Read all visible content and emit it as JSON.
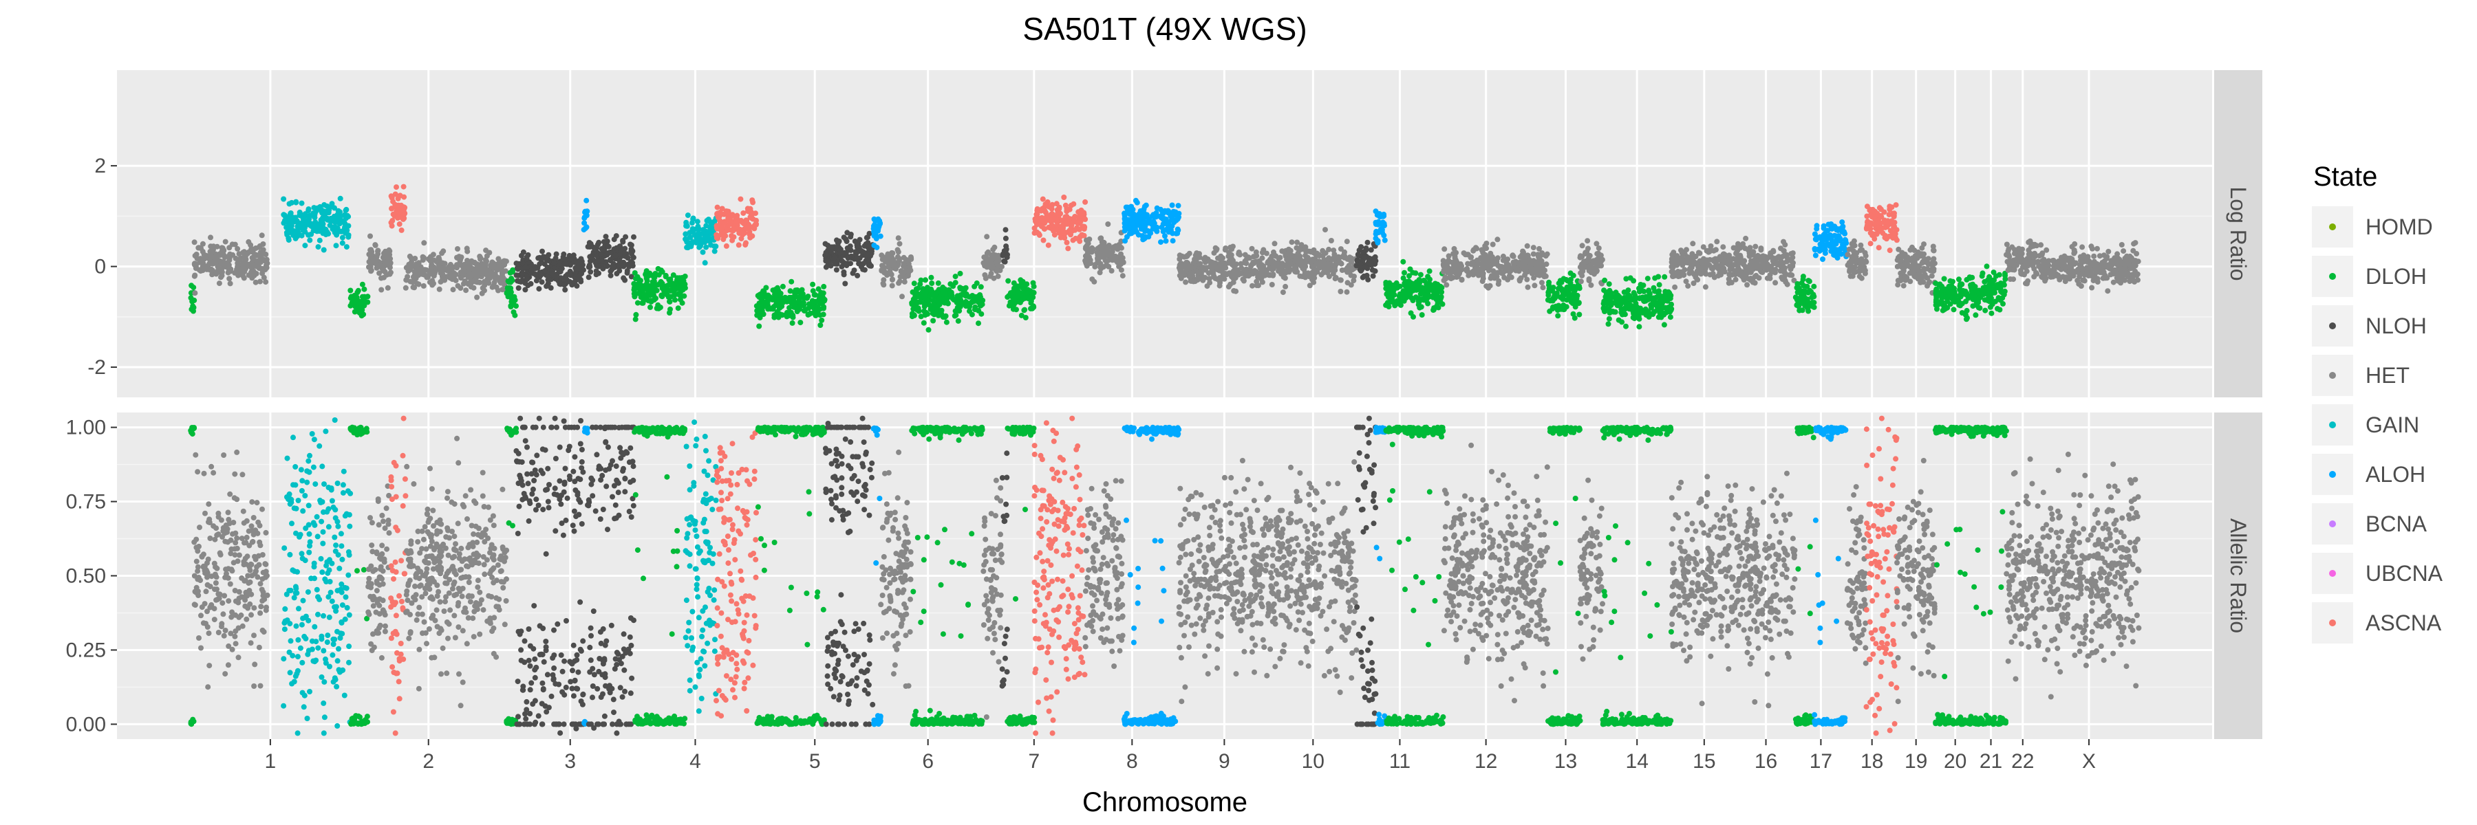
{
  "chart_data": {
    "type": "scatter",
    "title": "SA501T (49X WGS)",
    "xlabel": "Chromosome",
    "chromosomes": [
      {
        "name": "1",
        "size": 249
      },
      {
        "name": "2",
        "size": 243
      },
      {
        "name": "3",
        "size": 198
      },
      {
        "name": "4",
        "size": 191
      },
      {
        "name": "5",
        "size": 181
      },
      {
        "name": "6",
        "size": 171
      },
      {
        "name": "7",
        "size": 159
      },
      {
        "name": "8",
        "size": 146
      },
      {
        "name": "9",
        "size": 141
      },
      {
        "name": "10",
        "size": 135
      },
      {
        "name": "11",
        "size": 135
      },
      {
        "name": "12",
        "size": 133
      },
      {
        "name": "13",
        "size": 115
      },
      {
        "name": "14",
        "size": 107
      },
      {
        "name": "15",
        "size": 102
      },
      {
        "name": "16",
        "size": 90
      },
      {
        "name": "17",
        "size": 81
      },
      {
        "name": "18",
        "size": 78
      },
      {
        "name": "19",
        "size": 59
      },
      {
        "name": "20",
        "size": 63
      },
      {
        "name": "21",
        "size": 48
      },
      {
        "name": "22",
        "size": 51
      },
      {
        "name": "X",
        "size": 155
      }
    ],
    "panels": [
      {
        "strip": "Log Ratio",
        "ylim": [
          -2.6,
          3.9
        ],
        "yticks": [
          -2,
          0,
          2
        ],
        "ytick_labels": [
          "-2",
          "0",
          "2"
        ]
      },
      {
        "strip": "Allelic Ratio",
        "ylim": [
          -0.05,
          1.05
        ],
        "yticks": [
          0,
          0.25,
          0.5,
          0.75,
          1
        ],
        "ytick_labels": [
          "0.00",
          "0.25",
          "0.50",
          "0.75",
          "1.00"
        ]
      }
    ],
    "legend": {
      "title": "State",
      "position": "right",
      "entries": [
        {
          "label": "HOMD",
          "color": "#7cae00"
        },
        {
          "label": "DLOH",
          "color": "#00ba38"
        },
        {
          "label": "NLOH",
          "color": "#4d4d4d"
        },
        {
          "label": "HET",
          "color": "#888888"
        },
        {
          "label": "GAIN",
          "color": "#00bfc4"
        },
        {
          "label": "ALOH",
          "color": "#00a9ff"
        },
        {
          "label": "BCNA",
          "color": "#c77cff"
        },
        {
          "label": "UBCNA",
          "color": "#f564e3"
        },
        {
          "label": "ASCNA",
          "color": "#f8766d"
        }
      ]
    },
    "segments": [
      {
        "chrom": "1",
        "start": 0,
        "end": 6,
        "state": "DLOH",
        "log_ratio": -0.6
      },
      {
        "chrom": "1",
        "start": 6,
        "end": 120,
        "state": "HET",
        "log_ratio": 0.1
      },
      {
        "chrom": "1",
        "start": 145,
        "end": 249,
        "state": "GAIN",
        "log_ratio": 0.85
      },
      {
        "chrom": "2",
        "start": 0,
        "end": 27,
        "state": "DLOH",
        "log_ratio": -0.7
      },
      {
        "chrom": "2",
        "start": 27,
        "end": 63,
        "state": "HET",
        "log_ratio": 0.05
      },
      {
        "chrom": "2",
        "start": 63,
        "end": 86,
        "state": "ASCNA",
        "log_ratio": 1.15
      },
      {
        "chrom": "2",
        "start": 86,
        "end": 243,
        "state": "HET",
        "log_ratio": -0.1
      },
      {
        "chrom": "3",
        "start": 0,
        "end": 15,
        "state": "DLOH",
        "log_ratio": -0.5
      },
      {
        "chrom": "3",
        "start": 15,
        "end": 120,
        "state": "NLOH",
        "log_ratio": -0.1
      },
      {
        "chrom": "3",
        "start": 120,
        "end": 126,
        "state": "ALOH",
        "log_ratio": 0.9
      },
      {
        "chrom": "3",
        "start": 126,
        "end": 198,
        "state": "NLOH",
        "log_ratio": 0.2
      },
      {
        "chrom": "4",
        "start": 0,
        "end": 80,
        "state": "DLOH",
        "log_ratio": -0.45
      },
      {
        "chrom": "4",
        "start": 80,
        "end": 128,
        "state": "GAIN",
        "log_ratio": 0.6
      },
      {
        "chrom": "4",
        "start": 128,
        "end": 191,
        "state": "ASCNA",
        "log_ratio": 0.85
      },
      {
        "chrom": "5",
        "start": 0,
        "end": 106,
        "state": "DLOH",
        "log_ratio": -0.75
      },
      {
        "chrom": "5",
        "start": 106,
        "end": 181,
        "state": "NLOH",
        "log_ratio": 0.2
      },
      {
        "chrom": "6",
        "start": 0,
        "end": 12,
        "state": "ALOH",
        "log_ratio": 0.65
      },
      {
        "chrom": "6",
        "start": 12,
        "end": 60,
        "state": "HET",
        "log_ratio": 0.0
      },
      {
        "chrom": "6",
        "start": 60,
        "end": 171,
        "state": "DLOH",
        "log_ratio": -0.65
      },
      {
        "chrom": "7",
        "start": 0,
        "end": 30,
        "state": "HET",
        "log_ratio": 0.1
      },
      {
        "chrom": "7",
        "start": 30,
        "end": 38,
        "state": "NLOH",
        "log_ratio": 0.3
      },
      {
        "chrom": "7",
        "start": 38,
        "end": 80,
        "state": "DLOH",
        "log_ratio": -0.6
      },
      {
        "chrom": "7",
        "start": 80,
        "end": 159,
        "state": "ASCNA",
        "log_ratio": 0.9
      },
      {
        "chrom": "8",
        "start": 0,
        "end": 60,
        "state": "HET",
        "log_ratio": 0.2
      },
      {
        "chrom": "8",
        "start": 60,
        "end": 146,
        "state": "ALOH",
        "log_ratio": 0.9
      },
      {
        "chrom": "9",
        "start": 0,
        "end": 141,
        "state": "HET",
        "log_ratio": -0.05
      },
      {
        "chrom": "10",
        "start": 0,
        "end": 135,
        "state": "HET",
        "log_ratio": 0.05
      },
      {
        "chrom": "11",
        "start": 0,
        "end": 30,
        "state": "NLOH",
        "log_ratio": 0.1
      },
      {
        "chrom": "11",
        "start": 30,
        "end": 45,
        "state": "ALOH",
        "log_ratio": 0.8
      },
      {
        "chrom": "11",
        "start": 45,
        "end": 135,
        "state": "DLOH",
        "log_ratio": -0.5
      },
      {
        "chrom": "12",
        "start": 0,
        "end": 133,
        "state": "HET",
        "log_ratio": 0.0
      },
      {
        "chrom": "13",
        "start": 0,
        "end": 30,
        "state": "HET",
        "log_ratio": 0.0
      },
      {
        "chrom": "13",
        "start": 30,
        "end": 80,
        "state": "DLOH",
        "log_ratio": -0.6
      },
      {
        "chrom": "13",
        "start": 80,
        "end": 115,
        "state": "HET",
        "log_ratio": 0.05
      },
      {
        "chrom": "14",
        "start": 0,
        "end": 107,
        "state": "DLOH",
        "log_ratio": -0.7
      },
      {
        "chrom": "15",
        "start": 0,
        "end": 102,
        "state": "HET",
        "log_ratio": 0.05
      },
      {
        "chrom": "16",
        "start": 0,
        "end": 90,
        "state": "HET",
        "log_ratio": 0.05
      },
      {
        "chrom": "17",
        "start": 0,
        "end": 30,
        "state": "DLOH",
        "log_ratio": -0.6
      },
      {
        "chrom": "17",
        "start": 30,
        "end": 81,
        "state": "ALOH",
        "log_ratio": 0.5
      },
      {
        "chrom": "18",
        "start": 0,
        "end": 30,
        "state": "HET",
        "log_ratio": 0.1
      },
      {
        "chrom": "18",
        "start": 30,
        "end": 78,
        "state": "ASCNA",
        "log_ratio": 0.85
      },
      {
        "chrom": "19",
        "start": 0,
        "end": 59,
        "state": "HET",
        "log_ratio": 0.0
      },
      {
        "chrom": "20",
        "start": 0,
        "end": 63,
        "state": "DLOH",
        "log_ratio": -0.6
      },
      {
        "chrom": "21",
        "start": 0,
        "end": 48,
        "state": "DLOH",
        "log_ratio": -0.5
      },
      {
        "chrom": "22",
        "start": 0,
        "end": 51,
        "state": "HET",
        "log_ratio": 0.1
      },
      {
        "chrom": "X",
        "start": 0,
        "end": 155,
        "state": "HET",
        "log_ratio": 0.0
      }
    ]
  }
}
